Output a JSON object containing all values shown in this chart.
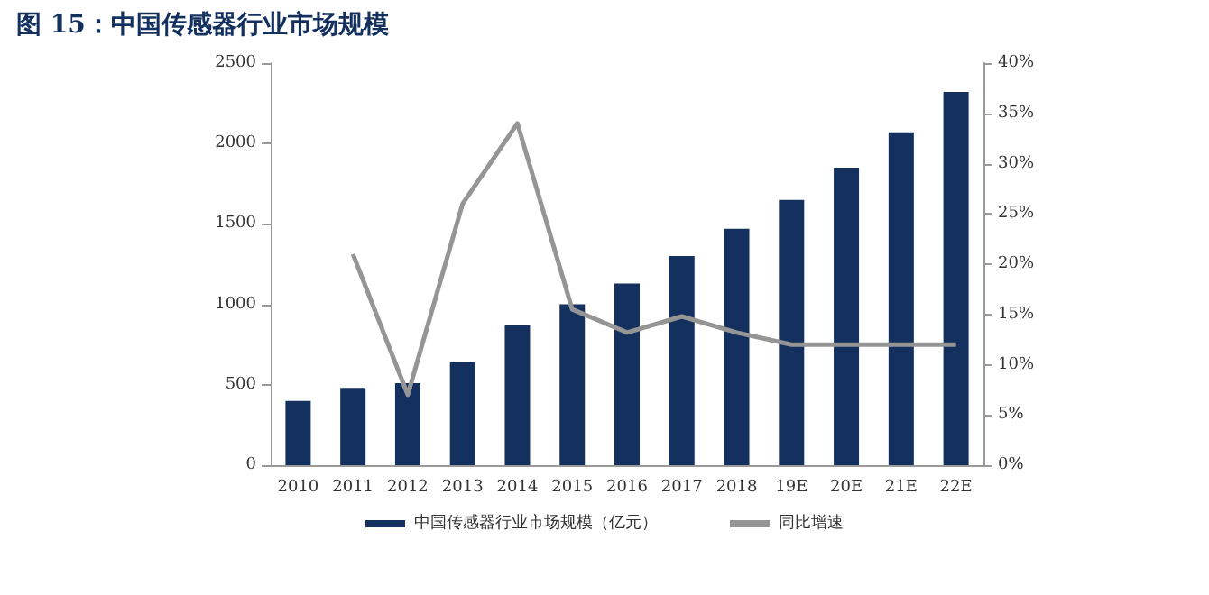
{
  "chart_data": {
    "type": "bar",
    "title": "图 15：中国传感器行业市场规模",
    "categories": [
      "2010",
      "2011",
      "2012",
      "2013",
      "2014",
      "2015",
      "2016",
      "2017",
      "2018",
      "19E",
      "20E",
      "21E",
      "22E"
    ],
    "series": [
      {
        "name": "中国传感器行业市场规模（亿元）",
        "color": "#13305f",
        "values": [
          400,
          480,
          510,
          640,
          870,
          1000,
          1130,
          1300,
          1470,
          1650,
          1850,
          2070,
          2320
        ]
      },
      {
        "name": "同比增速",
        "type": "line",
        "axis": "y2",
        "color": "#959595",
        "values": [
          null,
          21,
          7,
          26,
          34,
          15.5,
          13.2,
          14.8,
          13.2,
          12,
          12,
          12,
          12
        ]
      }
    ],
    "ylim": [
      0,
      2500
    ],
    "yticks": [
      0,
      500,
      1000,
      1500,
      2000,
      2500
    ],
    "y2lim": [
      0,
      40
    ],
    "y2ticks": [
      {
        "value": 0,
        "label": "0%"
      },
      {
        "value": 5,
        "label": "5%"
      },
      {
        "value": 10,
        "label": "10%"
      },
      {
        "value": 15,
        "label": "15%"
      },
      {
        "value": 20,
        "label": "20%"
      },
      {
        "value": 25,
        "label": "25%"
      },
      {
        "value": 30,
        "label": "30%"
      },
      {
        "value": 35,
        "label": "35%"
      },
      {
        "value": 40,
        "label": "40%"
      }
    ],
    "grid": false,
    "legend": "bottom",
    "marker": "none",
    "line_style": "solid"
  }
}
